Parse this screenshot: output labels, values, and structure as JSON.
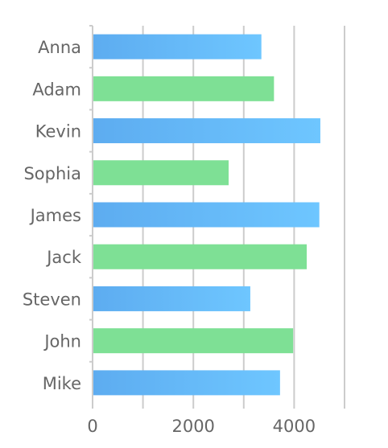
{
  "chart_data": {
    "type": "bar",
    "orientation": "horizontal",
    "categories": [
      "Anna",
      "Adam",
      "Kevin",
      "Sophia",
      "James",
      "Jack",
      "Steven",
      "John",
      "Mike"
    ],
    "values": [
      3350,
      3600,
      4520,
      2700,
      4500,
      4250,
      3130,
      3980,
      3720
    ],
    "xticks": [
      0,
      2000,
      4000
    ],
    "xlim": [
      0,
      5000
    ],
    "grid": true,
    "colors": {
      "blue_start": "#5dacf0",
      "blue_end": "#6ec6ff",
      "green": "#7ee095"
    },
    "bar_color_pattern": [
      "blue",
      "green"
    ]
  }
}
